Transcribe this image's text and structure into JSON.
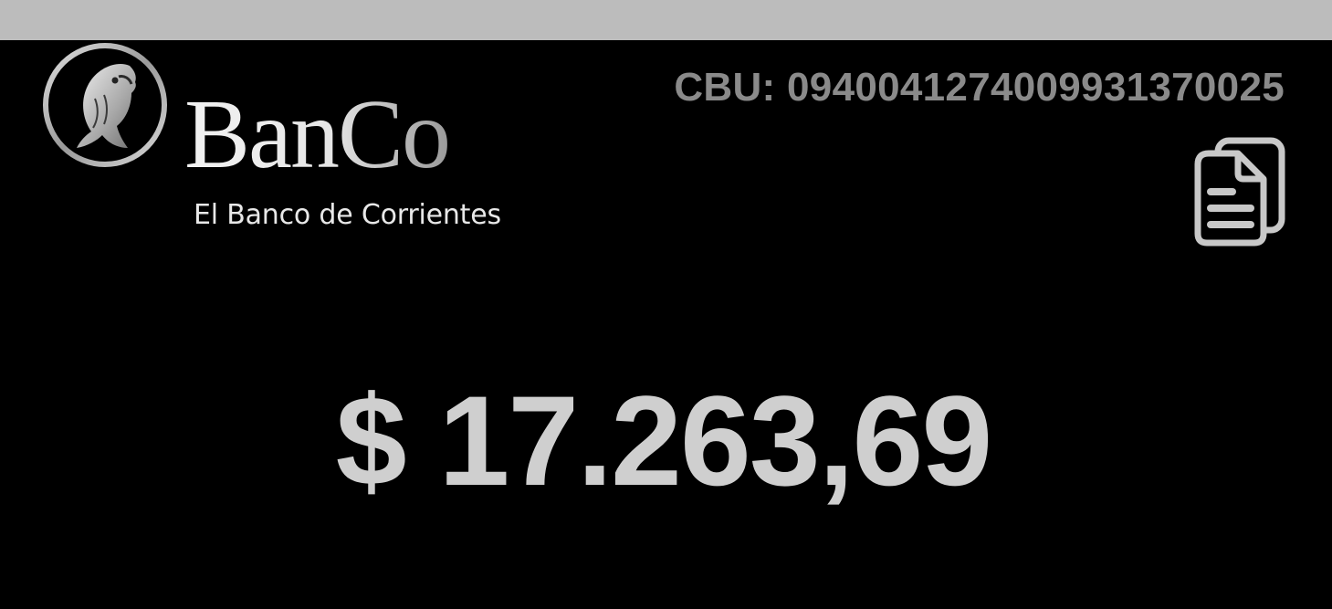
{
  "status_bar": {
    "color": "#bcbcbc"
  },
  "brand": {
    "name": "BanCo",
    "tagline": "El Banco de Corrientes",
    "emblem_icon": "fish-emblem-icon"
  },
  "account": {
    "cbu_text": "CBU: 0940041274009931370025",
    "copy_icon": "copy-documents-icon"
  },
  "balance": {
    "text": "$ 17.263,69",
    "currency": "$",
    "amount": "17.263,69"
  },
  "colors": {
    "background": "#000000",
    "cbu_text": "#8a8a8a",
    "balance_text": "#cfcfcf",
    "icon": "#c8c8c8"
  }
}
